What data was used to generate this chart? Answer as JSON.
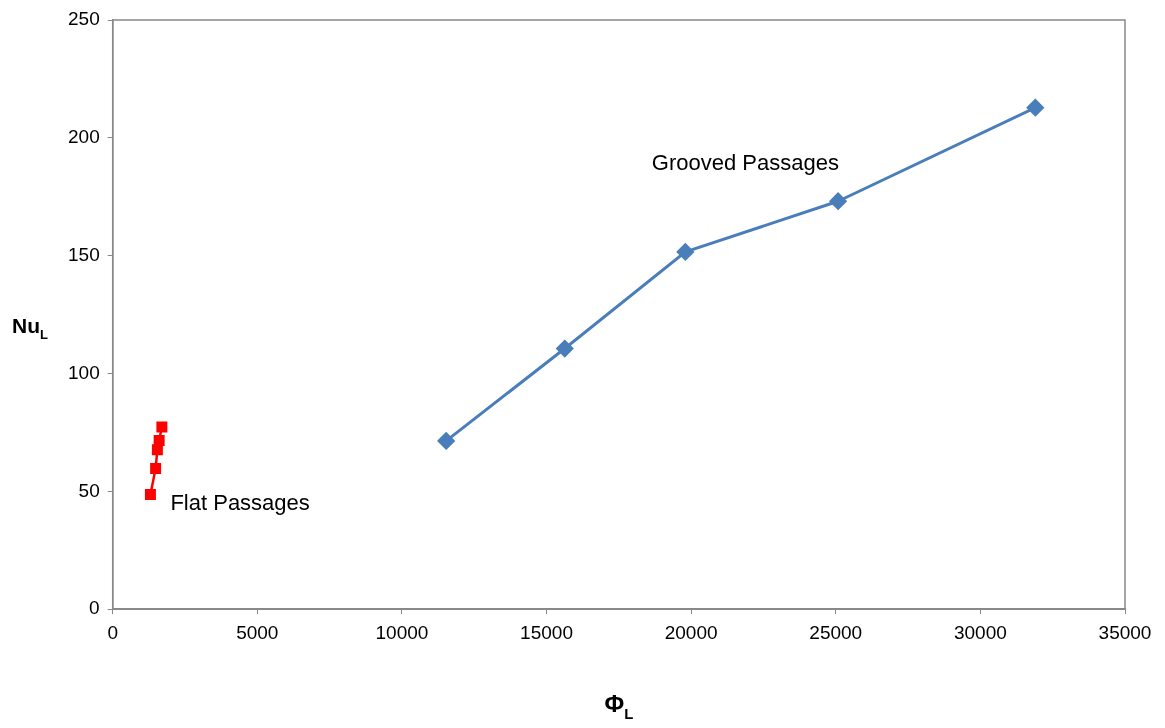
{
  "chart_data": {
    "type": "line",
    "xlabel": "Φ$_{L}$",
    "ylabel": "Nu$_{L}$",
    "xlim": [
      0,
      35000
    ],
    "xticks": [
      0,
      5000,
      10000,
      15000,
      20000,
      25000,
      30000,
      35000
    ],
    "ylim": [
      0,
      250
    ],
    "yticks": [
      0,
      50,
      100,
      150,
      200,
      250
    ],
    "grid": false,
    "legend": false,
    "line_style": "solid",
    "series": [
      {
        "name": "Grooved Passages",
        "color": "#4a7ebb",
        "marker": "diamond",
        "x": [
          11530,
          15630,
          19800,
          25080,
          31900
        ],
        "values": [
          71.4,
          110.6,
          151.6,
          173.1,
          212.8
        ]
      },
      {
        "name": "Flat Passages",
        "color": "#ff0000",
        "marker": "square",
        "x": [
          1304,
          1484,
          1545,
          1606,
          1700
        ],
        "values": [
          48.7,
          59.7,
          67.7,
          71.6,
          77.3
        ]
      }
    ]
  }
}
